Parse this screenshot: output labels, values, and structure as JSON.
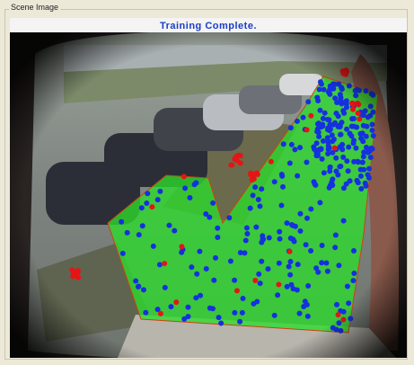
{
  "window": {
    "group_label": "Scene Image",
    "title": "Training Complete."
  }
}
